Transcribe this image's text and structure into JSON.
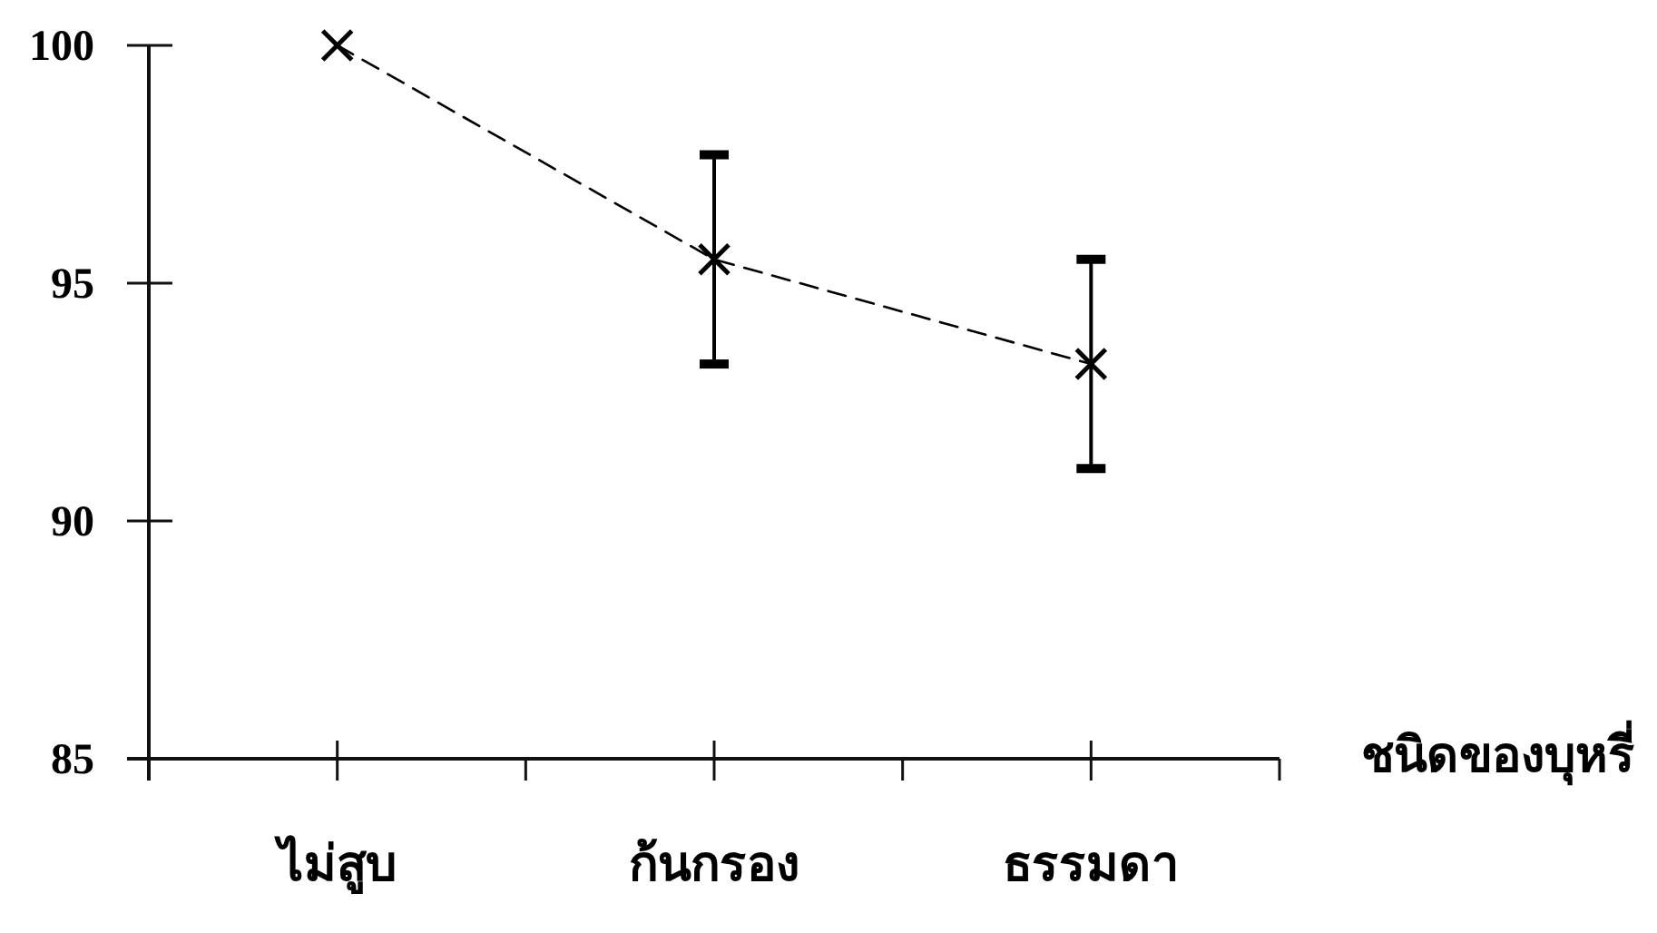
{
  "chart_data": {
    "type": "line",
    "xlabel": "ชนิดของบุหรี่",
    "categories": [
      "ไม่สูบ",
      "ก้นกรอง",
      "ธรรมดา"
    ],
    "series": [
      {
        "color": "#000000",
        "values": [
          100,
          95.5,
          93.3
        ],
        "errors": [
          null,
          2.2,
          2.2
        ]
      }
    ],
    "ylim": [
      85,
      100
    ],
    "yticks": [
      85,
      90,
      95,
      100
    ],
    "grid": false,
    "marker": "cross",
    "line_style": "dashed"
  }
}
